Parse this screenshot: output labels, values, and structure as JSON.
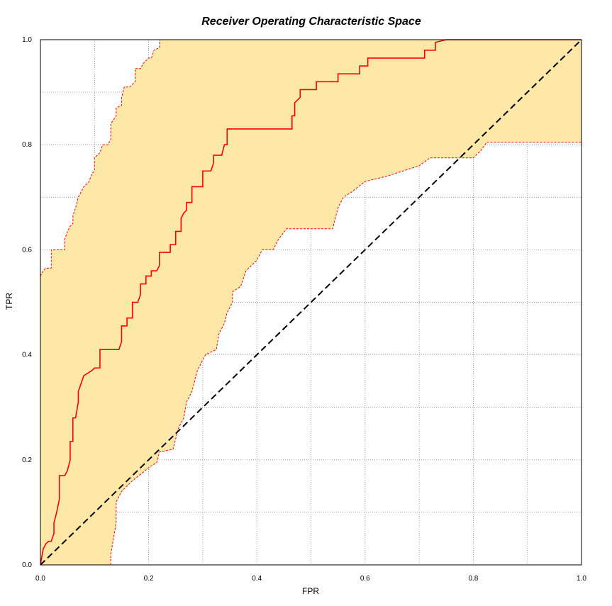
{
  "chart_data": {
    "type": "line",
    "title": "Receiver Operating Characteristic Space",
    "xlabel": "FPR",
    "ylabel": "TPR",
    "xlim": [
      0,
      1
    ],
    "ylim": [
      0,
      1
    ],
    "grid": true,
    "x_ticks": [
      "0.0",
      "0.2",
      "0.4",
      "0.6",
      "0.8",
      "1.0"
    ],
    "y_ticks": [
      "0.0",
      "0.2",
      "0.4",
      "0.6",
      "0.8",
      "1.0"
    ],
    "colors": {
      "roc": "#ff0000",
      "band": "#fde8a8",
      "band_edge": "#ff0000",
      "diagonal": "#000000",
      "grid": "#888888"
    },
    "series": [
      {
        "role": "roc",
        "points": [
          [
            0,
            0
          ],
          [
            0.005,
            0.03
          ],
          [
            0.01,
            0.04
          ],
          [
            0.015,
            0.045
          ],
          [
            0.02,
            0.045
          ],
          [
            0.025,
            0.06
          ],
          [
            0.025,
            0.08
          ],
          [
            0.03,
            0.1
          ],
          [
            0.035,
            0.125
          ],
          [
            0.035,
            0.17
          ],
          [
            0.045,
            0.17
          ],
          [
            0.05,
            0.18
          ],
          [
            0.055,
            0.2
          ],
          [
            0.055,
            0.235
          ],
          [
            0.06,
            0.235
          ],
          [
            0.06,
            0.28
          ],
          [
            0.065,
            0.28
          ],
          [
            0.07,
            0.31
          ],
          [
            0.07,
            0.33
          ],
          [
            0.075,
            0.345
          ],
          [
            0.08,
            0.36
          ],
          [
            0.095,
            0.37
          ],
          [
            0.1,
            0.375
          ],
          [
            0.11,
            0.375
          ],
          [
            0.11,
            0.41
          ],
          [
            0.14,
            0.41
          ],
          [
            0.14,
            0.41
          ],
          [
            0.145,
            0.41
          ],
          [
            0.15,
            0.425
          ],
          [
            0.15,
            0.455
          ],
          [
            0.16,
            0.455
          ],
          [
            0.16,
            0.47
          ],
          [
            0.17,
            0.47
          ],
          [
            0.17,
            0.5
          ],
          [
            0.18,
            0.5
          ],
          [
            0.185,
            0.515
          ],
          [
            0.185,
            0.535
          ],
          [
            0.195,
            0.535
          ],
          [
            0.195,
            0.55
          ],
          [
            0.205,
            0.55
          ],
          [
            0.205,
            0.56
          ],
          [
            0.215,
            0.56
          ],
          [
            0.22,
            0.57
          ],
          [
            0.22,
            0.595
          ],
          [
            0.24,
            0.595
          ],
          [
            0.24,
            0.61
          ],
          [
            0.25,
            0.61
          ],
          [
            0.25,
            0.635
          ],
          [
            0.26,
            0.635
          ],
          [
            0.26,
            0.66
          ],
          [
            0.265,
            0.67
          ],
          [
            0.27,
            0.675
          ],
          [
            0.27,
            0.69
          ],
          [
            0.28,
            0.69
          ],
          [
            0.28,
            0.72
          ],
          [
            0.3,
            0.72
          ],
          [
            0.3,
            0.75
          ],
          [
            0.315,
            0.75
          ],
          [
            0.32,
            0.765
          ],
          [
            0.32,
            0.78
          ],
          [
            0.335,
            0.78
          ],
          [
            0.34,
            0.8
          ],
          [
            0.345,
            0.8
          ],
          [
            0.345,
            0.83
          ],
          [
            0.465,
            0.83
          ],
          [
            0.465,
            0.855
          ],
          [
            0.47,
            0.855
          ],
          [
            0.47,
            0.88
          ],
          [
            0.475,
            0.885
          ],
          [
            0.48,
            0.89
          ],
          [
            0.48,
            0.9
          ],
          [
            0.48,
            0.905
          ],
          [
            0.51,
            0.905
          ],
          [
            0.51,
            0.92
          ],
          [
            0.55,
            0.92
          ],
          [
            0.55,
            0.935
          ],
          [
            0.59,
            0.935
          ],
          [
            0.59,
            0.95
          ],
          [
            0.605,
            0.95
          ],
          [
            0.605,
            0.965
          ],
          [
            0.71,
            0.965
          ],
          [
            0.71,
            0.98
          ],
          [
            0.73,
            0.98
          ],
          [
            0.73,
            0.995
          ],
          [
            0.75,
            1
          ],
          [
            1,
            1
          ]
        ]
      },
      {
        "role": "band-upper",
        "points": [
          [
            0,
            0.55
          ],
          [
            0.005,
            0.56
          ],
          [
            0.01,
            0.565
          ],
          [
            0.02,
            0.565
          ],
          [
            0.02,
            0.6
          ],
          [
            0.035,
            0.6
          ],
          [
            0.045,
            0.6
          ],
          [
            0.045,
            0.62
          ],
          [
            0.05,
            0.635
          ],
          [
            0.055,
            0.645
          ],
          [
            0.06,
            0.65
          ],
          [
            0.06,
            0.665
          ],
          [
            0.065,
            0.68
          ],
          [
            0.07,
            0.7
          ],
          [
            0.075,
            0.71
          ],
          [
            0.08,
            0.72
          ],
          [
            0.09,
            0.73
          ],
          [
            0.095,
            0.745
          ],
          [
            0.1,
            0.75
          ],
          [
            0.1,
            0.775
          ],
          [
            0.11,
            0.785
          ],
          [
            0.115,
            0.8
          ],
          [
            0.125,
            0.8
          ],
          [
            0.13,
            0.81
          ],
          [
            0.13,
            0.84
          ],
          [
            0.14,
            0.855
          ],
          [
            0.14,
            0.87
          ],
          [
            0.15,
            0.875
          ],
          [
            0.15,
            0.89
          ],
          [
            0.155,
            0.91
          ],
          [
            0.165,
            0.91
          ],
          [
            0.175,
            0.92
          ],
          [
            0.175,
            0.945
          ],
          [
            0.185,
            0.945
          ],
          [
            0.19,
            0.955
          ],
          [
            0.2,
            0.965
          ],
          [
            0.205,
            0.965
          ],
          [
            0.21,
            0.98
          ],
          [
            0.22,
            0.985
          ],
          [
            0.22,
            1
          ],
          [
            1,
            1
          ]
        ]
      },
      {
        "role": "band-lower",
        "points": [
          [
            0.13,
            0
          ],
          [
            0.13,
            0.02
          ],
          [
            0.135,
            0.05
          ],
          [
            0.14,
            0.08
          ],
          [
            0.14,
            0.12
          ],
          [
            0.15,
            0.14
          ],
          [
            0.17,
            0.16
          ],
          [
            0.2,
            0.185
          ],
          [
            0.215,
            0.195
          ],
          [
            0.22,
            0.215
          ],
          [
            0.245,
            0.22
          ],
          [
            0.25,
            0.24
          ],
          [
            0.255,
            0.26
          ],
          [
            0.265,
            0.28
          ],
          [
            0.27,
            0.31
          ],
          [
            0.28,
            0.33
          ],
          [
            0.285,
            0.35
          ],
          [
            0.29,
            0.37
          ],
          [
            0.3,
            0.39
          ],
          [
            0.305,
            0.4
          ],
          [
            0.325,
            0.41
          ],
          [
            0.33,
            0.44
          ],
          [
            0.34,
            0.46
          ],
          [
            0.345,
            0.48
          ],
          [
            0.355,
            0.5
          ],
          [
            0.355,
            0.52
          ],
          [
            0.37,
            0.53
          ],
          [
            0.38,
            0.56
          ],
          [
            0.39,
            0.57
          ],
          [
            0.4,
            0.58
          ],
          [
            0.41,
            0.6
          ],
          [
            0.43,
            0.6
          ],
          [
            0.44,
            0.62
          ],
          [
            0.455,
            0.64
          ],
          [
            0.54,
            0.64
          ],
          [
            0.545,
            0.66
          ],
          [
            0.55,
            0.68
          ],
          [
            0.56,
            0.7
          ],
          [
            0.575,
            0.71
          ],
          [
            0.6,
            0.73
          ],
          [
            0.64,
            0.74
          ],
          [
            0.67,
            0.75
          ],
          [
            0.7,
            0.76
          ],
          [
            0.72,
            0.775
          ],
          [
            0.8,
            0.775
          ],
          [
            0.815,
            0.79
          ],
          [
            0.825,
            0.805
          ],
          [
            1,
            0.805
          ]
        ]
      },
      {
        "role": "diagonal",
        "points": [
          [
            0,
            0
          ],
          [
            1,
            1
          ]
        ]
      }
    ]
  }
}
